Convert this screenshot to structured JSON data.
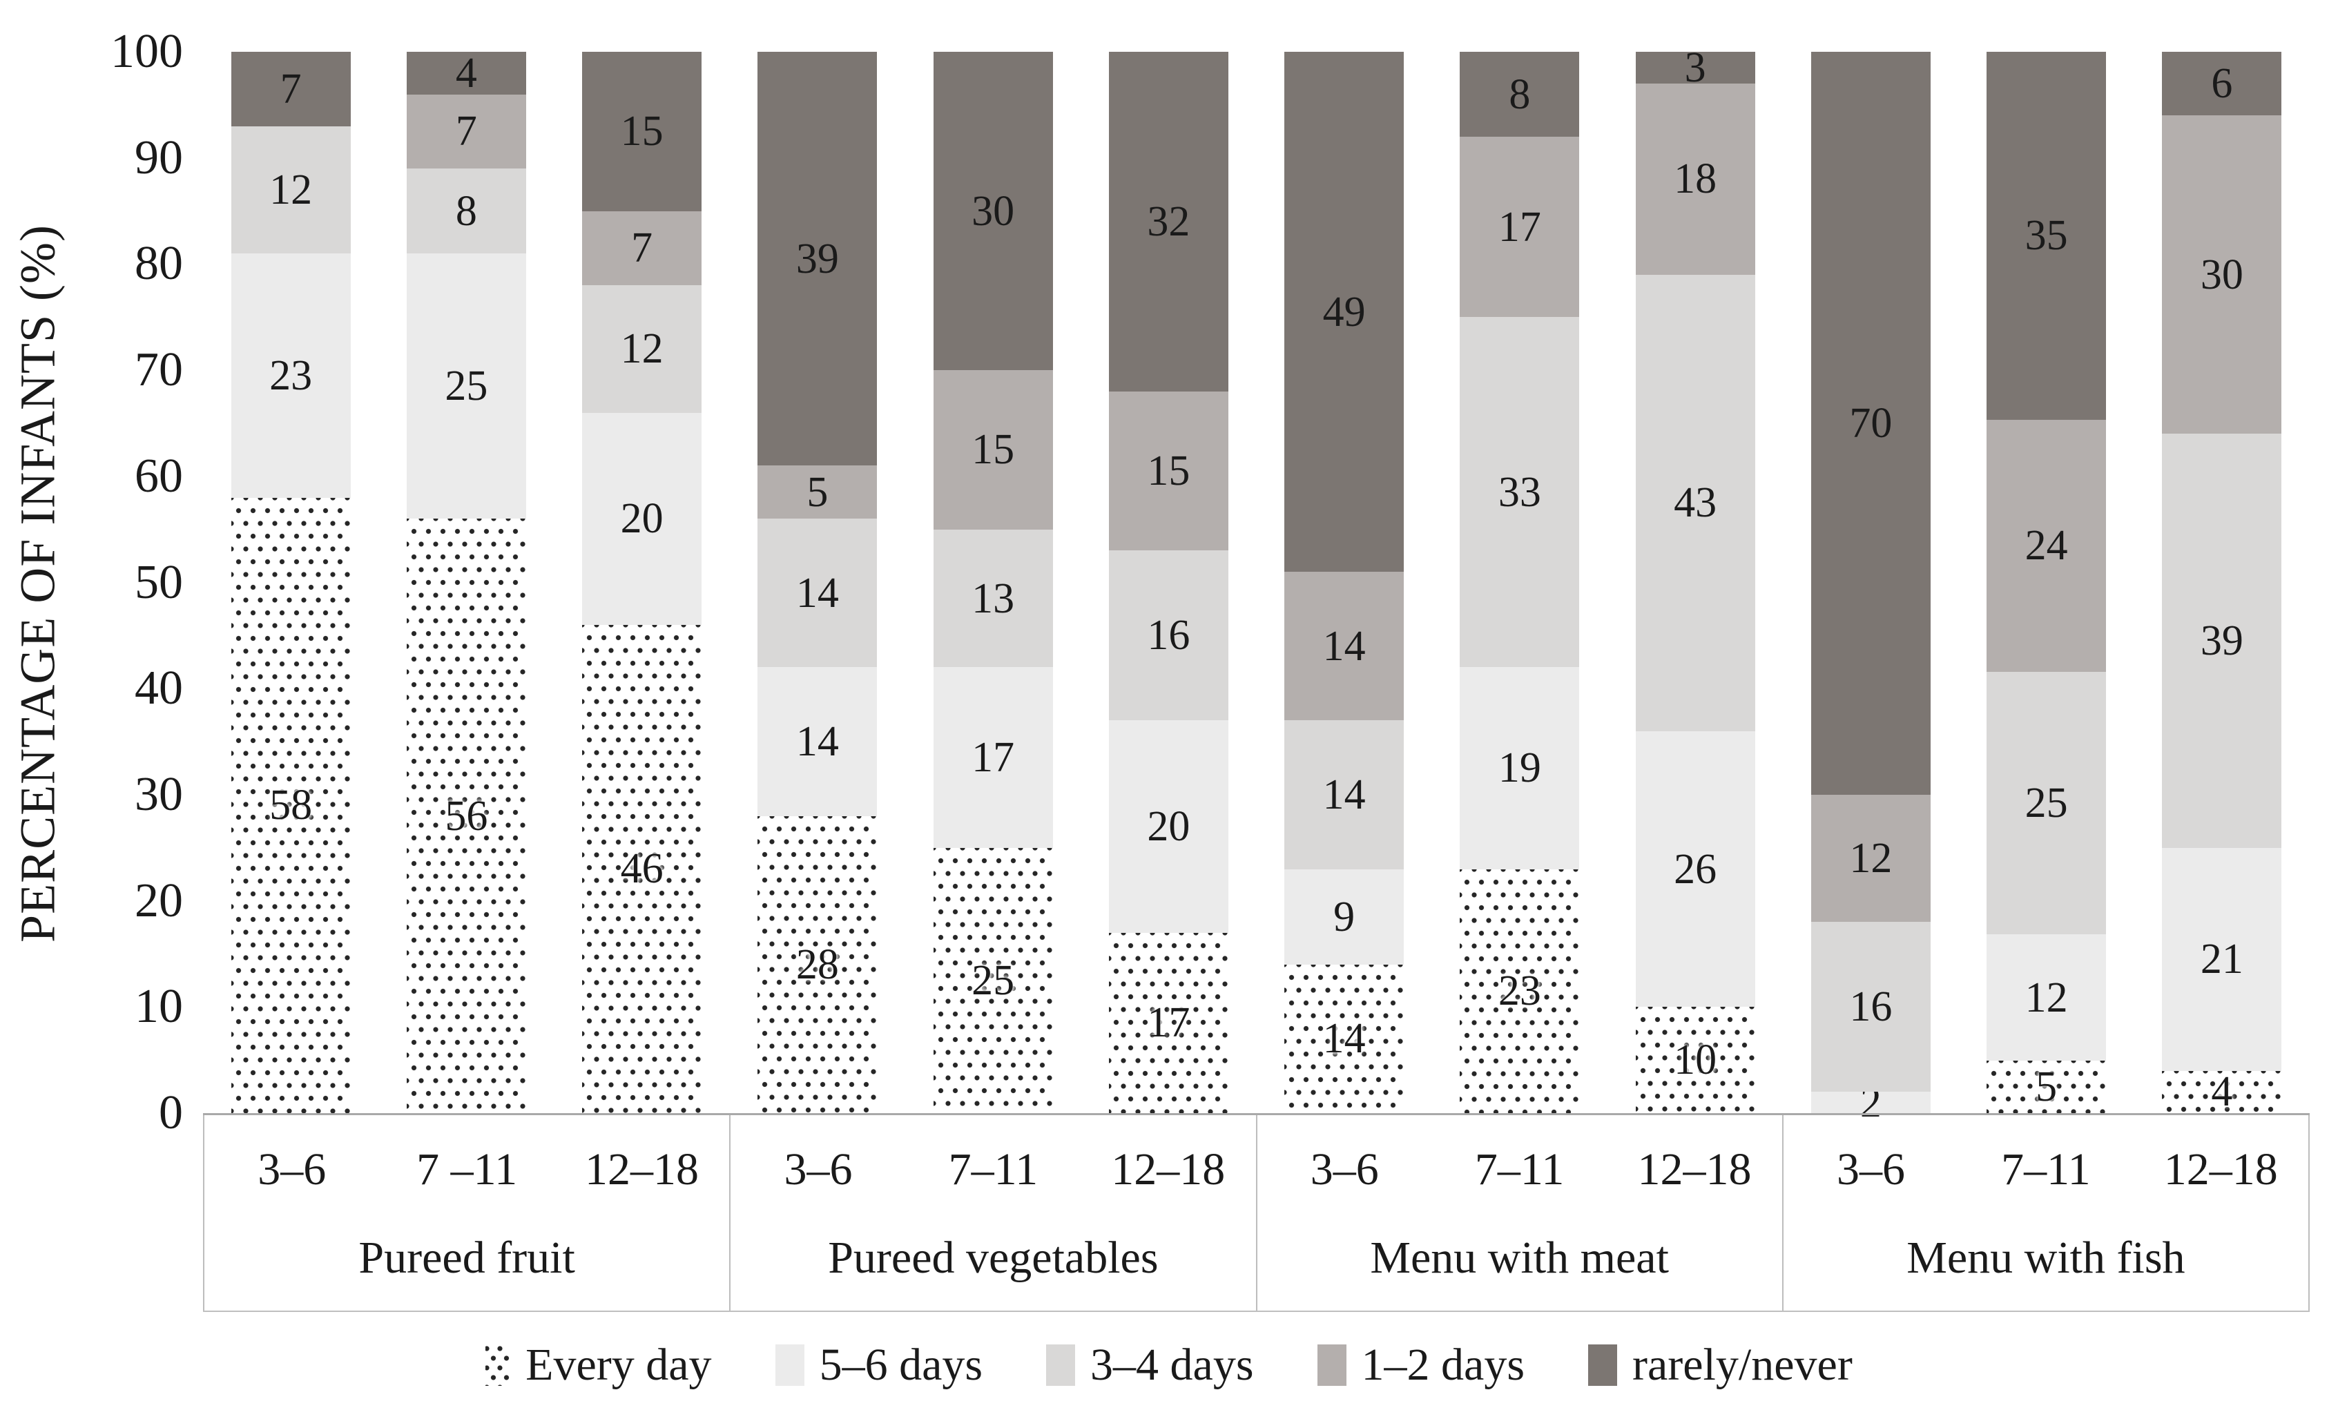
{
  "y_axis": {
    "title": "PERCENTAGE OF INFANTS (%)",
    "ticks": [
      0,
      10,
      20,
      30,
      40,
      50,
      60,
      70,
      80,
      90,
      100
    ],
    "max": 100
  },
  "legend": [
    {
      "key": "every_day",
      "label": "Every day",
      "style": "dotted",
      "color": "#ffffff",
      "dot_color": "#262626"
    },
    {
      "key": "days_5_6",
      "label": "5–6 days",
      "style": "solid",
      "color": "#ebebeb"
    },
    {
      "key": "days_3_4",
      "label": "3–4 days",
      "style": "solid",
      "color": "#d9d8d7"
    },
    {
      "key": "days_1_2",
      "label": "1–2 days",
      "style": "solid",
      "color": "#b4afad"
    },
    {
      "key": "rarely_never",
      "label": "rarely/never",
      "style": "solid",
      "color": "#7c7672"
    }
  ],
  "chart_data": {
    "type": "bar",
    "stacked": true,
    "title": "",
    "xlabel": "",
    "ylabel": "PERCENTAGE OF INFANTS (%)",
    "ylim": [
      0,
      100
    ],
    "grid": false,
    "legend_position": "bottom",
    "stack_order": [
      "every_day",
      "days_5_6",
      "days_3_4",
      "days_1_2",
      "rarely_never"
    ],
    "groups": [
      {
        "label": "Pureed fruit",
        "categories": [
          "3–6",
          "7 –11",
          "12–18"
        ],
        "series": {
          "every_day": [
            58,
            56,
            46
          ],
          "days_5_6": [
            23,
            25,
            20
          ],
          "days_3_4": [
            12,
            8,
            12
          ],
          "days_1_2": [
            0,
            7,
            7
          ],
          "rarely_never": [
            7,
            4,
            15
          ]
        }
      },
      {
        "label": "Pureed vegetables",
        "categories": [
          "3–6",
          "7–11",
          "12–18"
        ],
        "series": {
          "every_day": [
            28,
            25,
            17
          ],
          "days_5_6": [
            14,
            17,
            20
          ],
          "days_3_4": [
            14,
            13,
            16
          ],
          "days_1_2": [
            5,
            15,
            15
          ],
          "rarely_never": [
            39,
            30,
            32
          ]
        }
      },
      {
        "label": "Menu with meat",
        "categories": [
          "3–6",
          "7–11",
          "12–18"
        ],
        "series": {
          "every_day": [
            14,
            23,
            10
          ],
          "days_5_6": [
            9,
            19,
            26
          ],
          "days_3_4": [
            14,
            33,
            43
          ],
          "days_1_2": [
            14,
            17,
            18
          ],
          "rarely_never": [
            49,
            8,
            3
          ]
        }
      },
      {
        "label": "Menu with fish",
        "categories": [
          "3–6",
          "7–11",
          "12–18"
        ],
        "series": {
          "every_day": [
            0,
            5,
            4
          ],
          "days_5_6": [
            2,
            12,
            21
          ],
          "days_3_4": [
            16,
            25,
            39
          ],
          "days_1_2": [
            12,
            24,
            30
          ],
          "rarely_never": [
            70,
            35,
            6
          ]
        }
      }
    ]
  },
  "colors": {
    "text": "#1a1a1a",
    "axis_line": "#a9a9a9",
    "box_border": "#bdbdbd",
    "dot": "#262626",
    "background": "#ffffff"
  }
}
